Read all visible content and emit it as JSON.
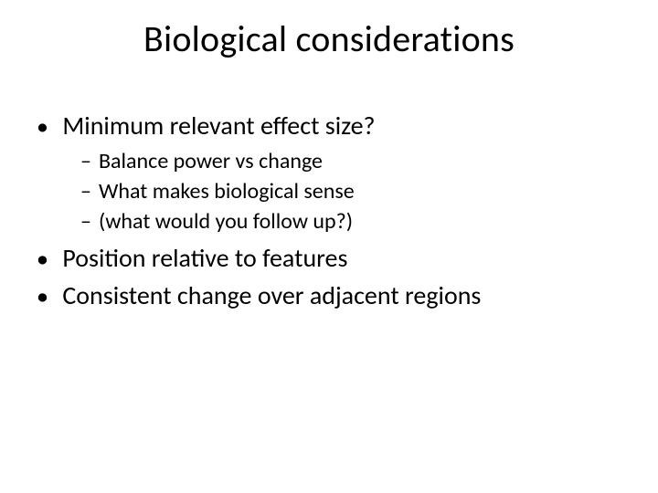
{
  "slide": {
    "title": "Biological considerations",
    "bullets": {
      "b1": {
        "text": "Minimum relevant effect size?",
        "sub": {
          "s1": "Balance power vs change",
          "s2": "What makes biological sense",
          "s3": "(what would you follow up?)"
        }
      },
      "b2": {
        "text": "Position relative to features"
      },
      "b3": {
        "text": "Consistent change over adjacent regions"
      }
    }
  },
  "style": {
    "background_color": "#ffffff",
    "text_color": "#000000",
    "title_fontsize_pt": 40,
    "level1_fontsize_pt": 28,
    "level2_fontsize_pt": 24,
    "font_family": "Calibri"
  }
}
